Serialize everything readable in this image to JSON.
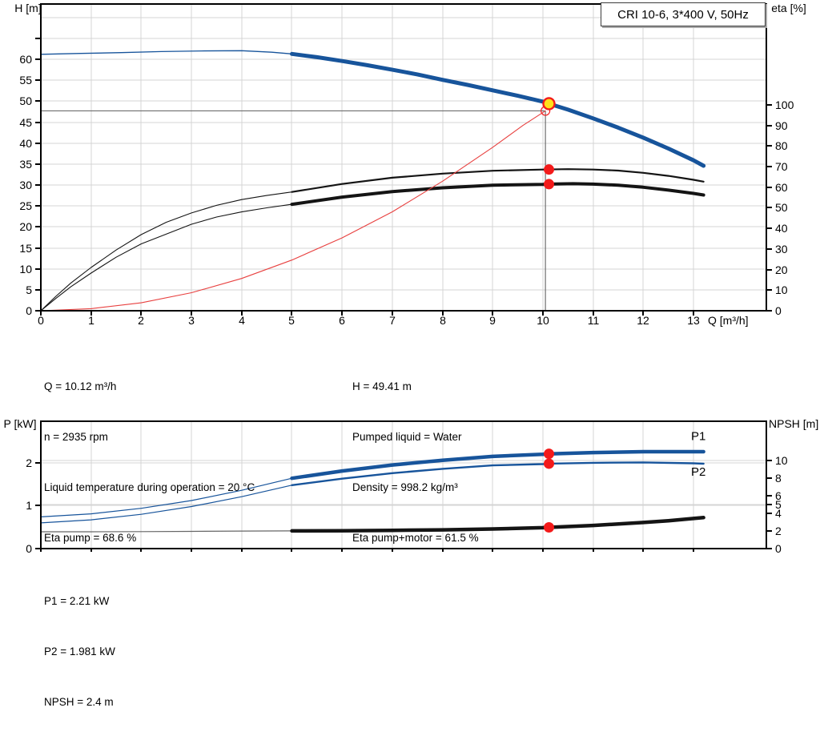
{
  "title_box": {
    "label": "CRI 10-6, 3*400 V, 50Hz"
  },
  "info_block": {
    "left": [
      "Q = 10.12 m³/h",
      "n = 2935 rpm",
      "Liquid temperature during operation = 20 °C",
      "Eta pump = 68.6 %"
    ],
    "right": [
      "H = 49.41 m",
      "Pumped liquid = Water",
      "Density = 998.2 kg/m³",
      "Eta pump+motor = 61.5 %"
    ]
  },
  "result_block": {
    "lines": [
      "P1 = 2.21 kW",
      "P2 = 1.981 kW",
      "NPSH = 2.4 m"
    ]
  },
  "colors": {
    "curve_blue": "#17549B",
    "curve_black": "#141414",
    "curve_gray": "#666666",
    "system_red": "#E8403F",
    "marker_red": "#F31A1A",
    "duty_yellow": "#FFE11A",
    "grid": "#D4D4D4",
    "frame": "#000000",
    "crosshair": "#6E6E6E"
  },
  "chart_data": [
    {
      "type": "line",
      "id": "qh-eta",
      "title": "CRI 10-6, 3*400 V, 50Hz",
      "x_axis": {
        "label": "Q [m³/h]",
        "min": 0,
        "max": 14.45,
        "ticks": [
          0,
          1,
          2,
          3,
          4,
          5,
          6,
          7,
          8,
          9,
          10,
          11,
          12,
          13
        ]
      },
      "y_left": {
        "label": "H",
        "unit": "[m]",
        "min": 0,
        "max": 73.2,
        "ticks": [
          0,
          5,
          10,
          15,
          20,
          25,
          30,
          35,
          40,
          45,
          50,
          55,
          60
        ],
        "minor_ticks": [
          65
        ],
        "gridlines": [
          5,
          10,
          15,
          20,
          25,
          30,
          35,
          40,
          45,
          50,
          55,
          60,
          65,
          70
        ]
      },
      "y_right": {
        "label": "eta",
        "unit": "[%]",
        "min": 0,
        "max": 149,
        "ticks": [
          0,
          10,
          20,
          30,
          40,
          50,
          60,
          70,
          80,
          90,
          100
        ],
        "gridlines": []
      },
      "series": [
        {
          "name": "qh-curve-thin",
          "axis": "left",
          "color_key": "curve_blue",
          "width": 1.3,
          "points": [
            [
              0,
              61.2
            ],
            [
              0.8,
              61.4
            ],
            [
              1.6,
              61.6
            ],
            [
              2.4,
              61.85
            ],
            [
              3.2,
              62.0
            ],
            [
              4,
              62.05
            ],
            [
              4.6,
              61.7
            ],
            [
              5,
              61.3
            ]
          ]
        },
        {
          "name": "qh-curve",
          "axis": "left",
          "color_key": "curve_blue",
          "width": 5,
          "points": [
            [
              5,
              61.3
            ],
            [
              5.5,
              60.5
            ],
            [
              6,
              59.6
            ],
            [
              6.5,
              58.6
            ],
            [
              7,
              57.5
            ],
            [
              7.5,
              56.4
            ],
            [
              8,
              55.1
            ],
            [
              8.5,
              53.9
            ],
            [
              9,
              52.6
            ],
            [
              9.5,
              51.3
            ],
            [
              10,
              49.9
            ],
            [
              10.12,
              49.41
            ],
            [
              10.5,
              48.0
            ],
            [
              11,
              45.9
            ],
            [
              11.5,
              43.7
            ],
            [
              12,
              41.3
            ],
            [
              12.5,
              38.7
            ],
            [
              13,
              35.9
            ],
            [
              13.2,
              34.6
            ]
          ]
        },
        {
          "name": "eta-pump-thin",
          "axis": "right",
          "color_key": "curve_black",
          "width": 1.1,
          "points": [
            [
              0,
              0
            ],
            [
              0.3,
              7
            ],
            [
              0.6,
              13.5
            ],
            [
              1,
              21
            ],
            [
              1.5,
              29.5
            ],
            [
              2,
              37
            ],
            [
              2.5,
              43
            ],
            [
              3,
              47.5
            ],
            [
              3.5,
              51.2
            ],
            [
              4,
              54
            ],
            [
              4.5,
              56
            ],
            [
              5,
              57.7
            ]
          ]
        },
        {
          "name": "eta-pump",
          "axis": "right",
          "color_key": "curve_black",
          "width": 2.2,
          "points": [
            [
              5,
              57.7
            ],
            [
              6,
              61.6
            ],
            [
              7,
              64.6
            ],
            [
              8,
              66.6
            ],
            [
              9,
              68.0
            ],
            [
              10,
              68.6
            ],
            [
              10.5,
              68.8
            ],
            [
              11,
              68.6
            ],
            [
              11.5,
              68.1
            ],
            [
              12,
              67.0
            ],
            [
              12.5,
              65.5
            ],
            [
              13,
              63.6
            ],
            [
              13.2,
              62.7
            ]
          ]
        },
        {
          "name": "eta-pump-motor-thin",
          "axis": "right",
          "color_key": "curve_black",
          "width": 1.1,
          "points": [
            [
              0,
              0
            ],
            [
              0.3,
              6
            ],
            [
              0.6,
              11.7
            ],
            [
              1,
              18.3
            ],
            [
              1.5,
              26
            ],
            [
              2,
              32.5
            ],
            [
              3,
              42
            ],
            [
              3.5,
              45.5
            ],
            [
              4,
              48
            ],
            [
              4.5,
              50
            ],
            [
              5,
              51.7
            ]
          ]
        },
        {
          "name": "eta-pump-motor",
          "axis": "right",
          "color_key": "curve_black",
          "width": 4,
          "points": [
            [
              5,
              51.7
            ],
            [
              6,
              55.2
            ],
            [
              7,
              57.9
            ],
            [
              8,
              59.7
            ],
            [
              9,
              61.0
            ],
            [
              10,
              61.4
            ],
            [
              10.12,
              61.5
            ],
            [
              10.6,
              61.7
            ],
            [
              11,
              61.5
            ],
            [
              11.5,
              61.0
            ],
            [
              12,
              60.0
            ],
            [
              12.5,
              58.6
            ],
            [
              13,
              57.0
            ],
            [
              13.2,
              56.2
            ]
          ]
        },
        {
          "name": "system-curve",
          "axis": "left",
          "color_key": "system_red",
          "width": 1.1,
          "points": [
            [
              0,
              0
            ],
            [
              1,
              0.5
            ],
            [
              2,
              1.9
            ],
            [
              3,
              4.3
            ],
            [
              4,
              7.7
            ],
            [
              5,
              12.1
            ],
            [
              6,
              17.4
            ],
            [
              7,
              23.6
            ],
            [
              8,
              30.9
            ],
            [
              9,
              39.0
            ],
            [
              9.6,
              44.2
            ],
            [
              10.05,
              47.7
            ]
          ]
        }
      ],
      "duty_point": {
        "q": 10.12,
        "h": 49.41
      },
      "intersection_marker": {
        "q": 10.05,
        "h": 47.7
      },
      "operating_dots": [
        {
          "axis": "right",
          "q": 10.12,
          "v": 68.6
        },
        {
          "axis": "right",
          "q": 10.12,
          "v": 61.5
        }
      ]
    },
    {
      "type": "line",
      "id": "power-npsh",
      "x_axis": {
        "label": "",
        "min": 0,
        "max": 14.45,
        "ticks": [
          0,
          1,
          2,
          3,
          4,
          5,
          6,
          7,
          8,
          9,
          10,
          11,
          12,
          13
        ]
      },
      "y_left": {
        "label": "P",
        "unit": "[kW]",
        "min": 0,
        "max": 2.97,
        "ticks": [
          0,
          1,
          2
        ],
        "minor_ticks": [],
        "gridlines": [
          1,
          2
        ]
      },
      "y_right": {
        "label": "NPSH",
        "unit": "[m]",
        "min": 0,
        "max": 14.39,
        "ticks": [
          0,
          2,
          4,
          5,
          6,
          8,
          10
        ],
        "gridlines": [
          5,
          10
        ]
      },
      "series": [
        {
          "name": "p1-thin",
          "axis": "left",
          "color_key": "curve_blue",
          "width": 1.2,
          "points": [
            [
              0,
              0.74
            ],
            [
              1,
              0.81
            ],
            [
              2,
              0.94
            ],
            [
              3,
              1.12
            ],
            [
              4,
              1.36
            ],
            [
              5,
              1.64
            ]
          ]
        },
        {
          "name": "p1",
          "axis": "left",
          "color_key": "curve_blue",
          "width": 4.5,
          "label": "P1",
          "label_q": 12.95,
          "label_v": 2.53,
          "points": [
            [
              5,
              1.64
            ],
            [
              6,
              1.81
            ],
            [
              7,
              1.95
            ],
            [
              8,
              2.06
            ],
            [
              9,
              2.15
            ],
            [
              10,
              2.2
            ],
            [
              10.12,
              2.21
            ],
            [
              11,
              2.24
            ],
            [
              12,
              2.26
            ],
            [
              13,
              2.26
            ],
            [
              13.2,
              2.26
            ]
          ]
        },
        {
          "name": "p2-thin",
          "axis": "left",
          "color_key": "curve_blue",
          "width": 1.2,
          "points": [
            [
              0,
              0.6
            ],
            [
              1,
              0.67
            ],
            [
              2,
              0.8
            ],
            [
              3,
              0.98
            ],
            [
              4,
              1.21
            ],
            [
              5,
              1.48
            ]
          ]
        },
        {
          "name": "p2",
          "axis": "left",
          "color_key": "curve_blue",
          "width": 2.4,
          "label": "P2",
          "label_q": 12.95,
          "label_v": 1.7,
          "points": [
            [
              5,
              1.48
            ],
            [
              6,
              1.63
            ],
            [
              7,
              1.76
            ],
            [
              8,
              1.86
            ],
            [
              9,
              1.94
            ],
            [
              10,
              1.97
            ],
            [
              10.12,
              1.981
            ],
            [
              11,
              2.0
            ],
            [
              12,
              2.01
            ],
            [
              13,
              1.99
            ],
            [
              13.2,
              1.98
            ]
          ]
        },
        {
          "name": "npsh-thin",
          "axis": "right",
          "color_key": "curve_gray",
          "width": 1.2,
          "points": [
            [
              0,
              1.9
            ],
            [
              1,
              1.9
            ],
            [
              2,
              1.92
            ],
            [
              3,
              1.95
            ],
            [
              4,
              1.98
            ],
            [
              5,
              2.0
            ]
          ]
        },
        {
          "name": "npsh",
          "axis": "right",
          "color_key": "curve_black",
          "width": 4.5,
          "points": [
            [
              5,
              2.0
            ],
            [
              6,
              2.02
            ],
            [
              7,
              2.06
            ],
            [
              8,
              2.12
            ],
            [
              9,
              2.22
            ],
            [
              10,
              2.36
            ],
            [
              10.12,
              2.4
            ],
            [
              11,
              2.62
            ],
            [
              12,
              2.95
            ],
            [
              12.5,
              3.15
            ],
            [
              13,
              3.4
            ],
            [
              13.2,
              3.5
            ]
          ]
        }
      ],
      "operating_dots": [
        {
          "axis": "left",
          "q": 10.12,
          "v": 2.21
        },
        {
          "axis": "left",
          "q": 10.12,
          "v": 1.981
        },
        {
          "axis": "right",
          "q": 10.12,
          "v": 2.4
        }
      ]
    }
  ]
}
